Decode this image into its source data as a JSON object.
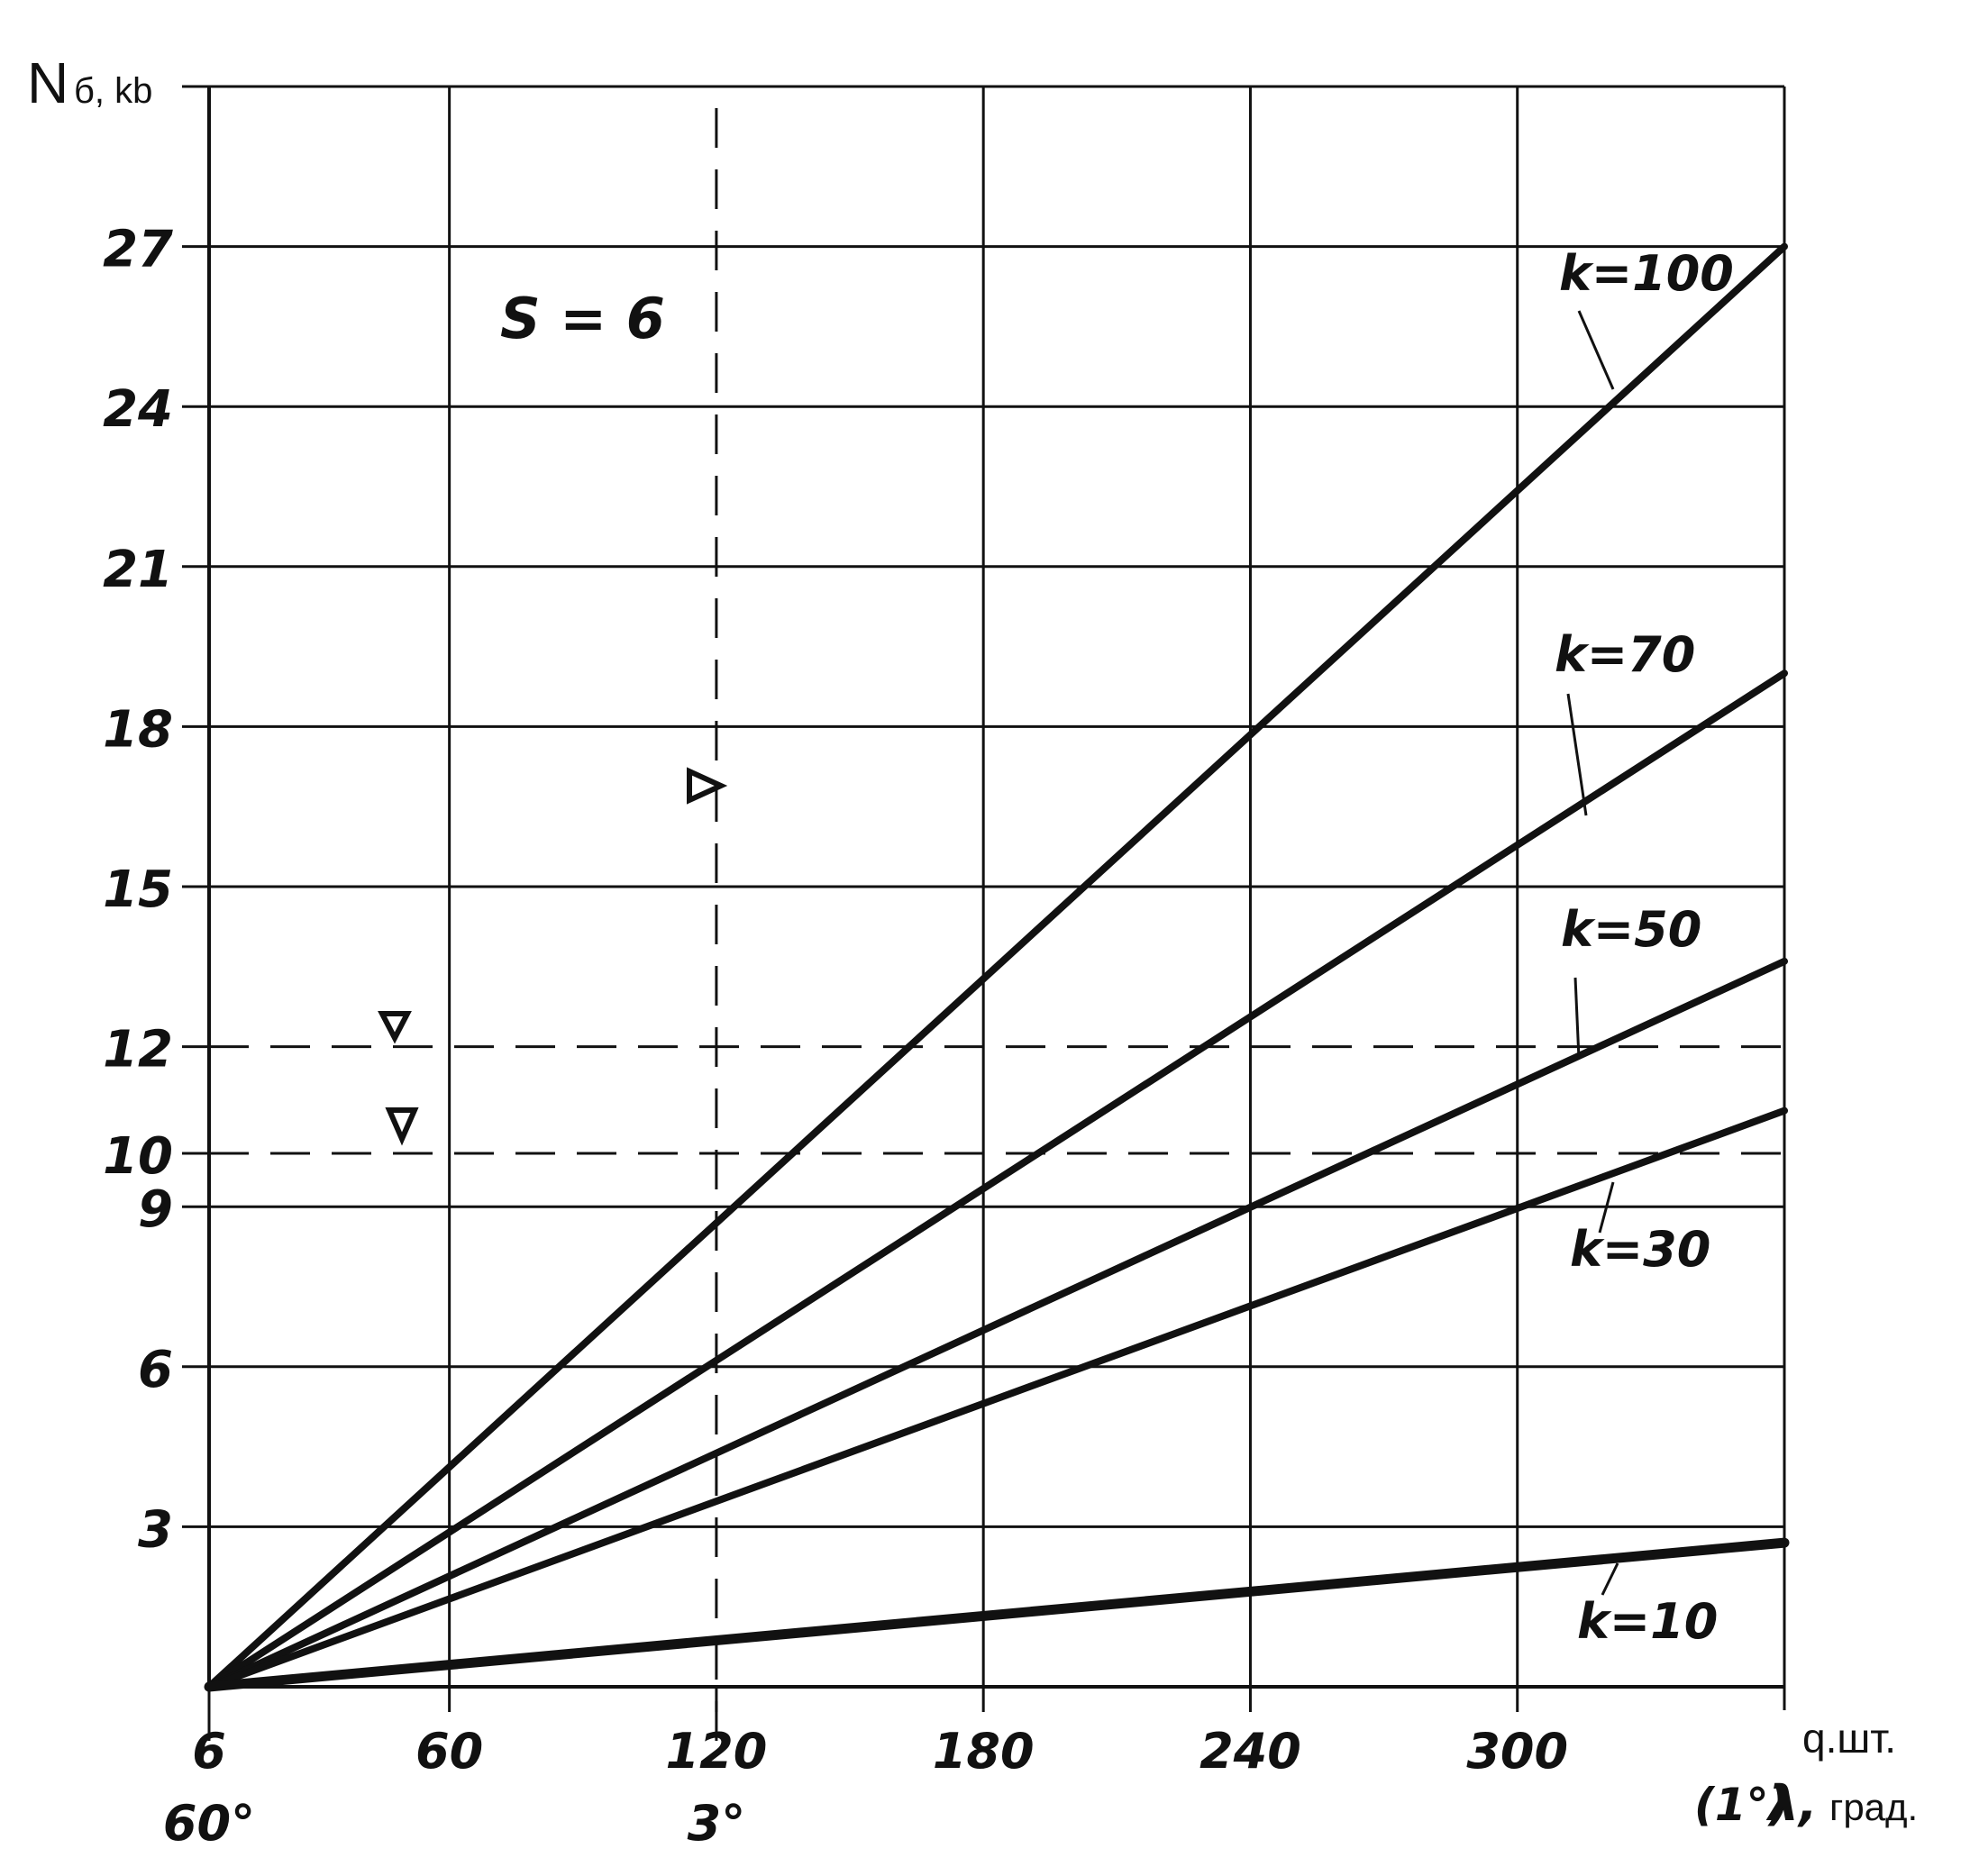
{
  "chart_data": {
    "type": "line",
    "ylabel": "N",
    "ylabel_sub": "б, kb",
    "xlabel": "q.шт.",
    "xlabel2_prefix": "(1°)",
    "xlabel2_symbol": "λ,",
    "xlabel2_unit": "град.",
    "annotation": "S = 6",
    "x_ticks": [
      {
        "x": 6,
        "label": "6"
      },
      {
        "x": 60,
        "label": "60"
      },
      {
        "x": 120,
        "label": "120"
      },
      {
        "x": 180,
        "label": "180"
      },
      {
        "x": 240,
        "label": "240"
      },
      {
        "x": 300,
        "label": "300"
      }
    ],
    "x2_ticks": [
      {
        "x": 6,
        "label": "60°"
      },
      {
        "x": 120,
        "label": "3°"
      }
    ],
    "y_ticks": [
      3,
      6,
      9,
      10,
      12,
      15,
      18,
      21,
      24,
      27
    ],
    "xlim": [
      6,
      360
    ],
    "ylim": [
      0,
      30
    ],
    "grid": true,
    "series": [
      {
        "name": "k=100",
        "x": [
          6,
          360
        ],
        "y": [
          0,
          27
        ]
      },
      {
        "name": "k=70",
        "x": [
          6,
          360
        ],
        "y": [
          0,
          19
        ]
      },
      {
        "name": "k=50",
        "x": [
          6,
          360
        ],
        "y": [
          0,
          13.6
        ]
      },
      {
        "name": "k=30",
        "x": [
          6,
          360
        ],
        "y": [
          0,
          10.8
        ]
      },
      {
        "name": "k=10",
        "x": [
          6,
          360
        ],
        "y": [
          0,
          2.7
        ]
      }
    ],
    "dashed_h": [
      12,
      10
    ],
    "dashed_v": [
      6,
      120
    ]
  }
}
